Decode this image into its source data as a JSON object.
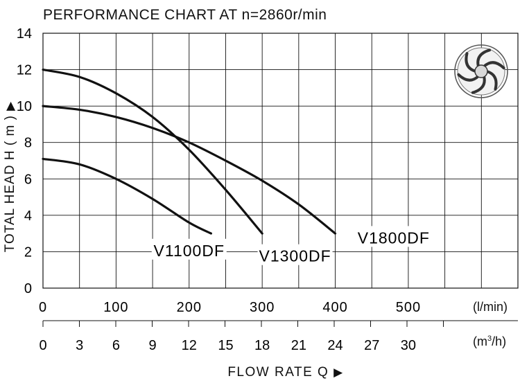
{
  "title": "PERFORMANCE  CHART  AT  n=2860r/min",
  "icon": "impeller-icon",
  "axis": {
    "ylabel": "TOTAL HEAD  H ( m )",
    "xlabel": "FLOW  RATE  Q",
    "arrow_glyph": "▶",
    "x_unit": "(l/min)",
    "x2_unit_prefix": "(m",
    "x2_unit_sup": "3",
    "x2_unit_suffix": "/h)"
  },
  "chart_data": {
    "type": "line",
    "title": "PERFORMANCE  CHART  AT  n=2860r/min",
    "xlabel": "FLOW  RATE  Q",
    "ylabel": "TOTAL HEAD  H ( m )",
    "xlim": [
      0,
      650
    ],
    "ylim": [
      0,
      14
    ],
    "x_ticks": [
      0,
      100,
      200,
      300,
      400,
      500
    ],
    "x_tick_labels": [
      "0",
      "100",
      "200",
      "300",
      "400",
      "500"
    ],
    "y_ticks": [
      0,
      2,
      4,
      6,
      8,
      10,
      12,
      14
    ],
    "y_tick_labels": [
      "0",
      "2",
      "4",
      "6",
      "8",
      "10",
      "12",
      "14"
    ],
    "x2_ticks": [
      0,
      3,
      6,
      9,
      12,
      15,
      18,
      21,
      24,
      27,
      30
    ],
    "x2_tick_labels": [
      "0",
      "3",
      "6",
      "9",
      "12",
      "15",
      "18",
      "21",
      "24",
      "27",
      "30"
    ],
    "grid": true,
    "series": [
      {
        "name": "V1100DF",
        "x": [
          0,
          50,
          100,
          150,
          200,
          230
        ],
        "y": [
          7.1,
          6.8,
          6.0,
          4.9,
          3.6,
          3.0
        ]
      },
      {
        "name": "V1300DF",
        "x": [
          0,
          50,
          100,
          150,
          200,
          250,
          300
        ],
        "y": [
          12.0,
          11.6,
          10.7,
          9.4,
          7.6,
          5.4,
          3.0
        ]
      },
      {
        "name": "V1800DF",
        "x": [
          0,
          50,
          100,
          150,
          200,
          250,
          300,
          350,
          400
        ],
        "y": [
          10.0,
          9.8,
          9.4,
          8.8,
          8.0,
          7.0,
          5.9,
          4.6,
          3.0
        ]
      }
    ],
    "annotations": [
      {
        "text": "V1100DF",
        "x": 200,
        "y": 2.1
      },
      {
        "text": "V1300DF",
        "x": 345,
        "y": 1.8
      },
      {
        "text": "V1800DF",
        "x": 480,
        "y": 2.8
      }
    ]
  }
}
